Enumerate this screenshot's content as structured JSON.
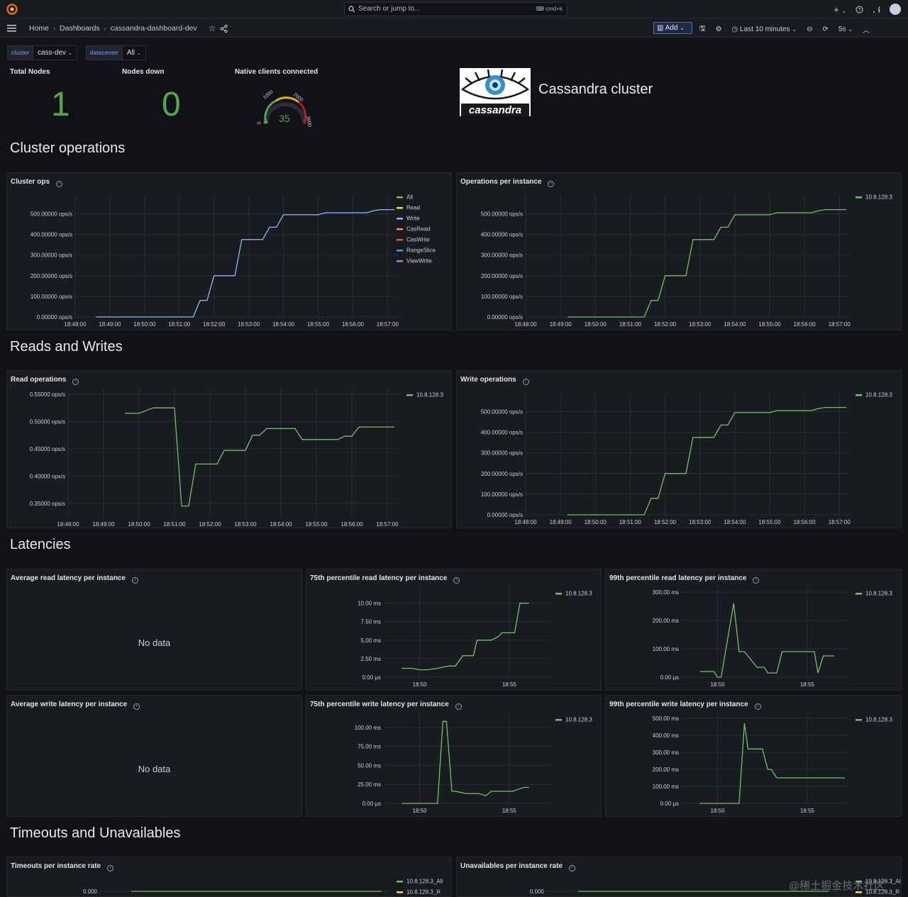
{
  "topbar": {
    "search_placeholder": "Search or jump to...",
    "search_shortcut": "cmd+k",
    "plus_label": "+"
  },
  "breadcrumb": {
    "home": "Home",
    "dashboards": "Dashboards",
    "current": "cassandra-dashboard-dev"
  },
  "toolbar": {
    "add_label": "Add",
    "time_range": "Last 10 minutes",
    "refresh": "5s"
  },
  "variables": [
    {
      "label": "cluster",
      "value": "cass-dev"
    },
    {
      "label": "datacenter",
      "value": "All"
    }
  ],
  "stats": {
    "total_nodes": {
      "title": "Total Nodes",
      "value": "1"
    },
    "nodes_down": {
      "title": "Nodes down",
      "value": "0"
    },
    "native_clients": {
      "title": "Native clients connected",
      "value": "35",
      "ticks": [
        "0",
        "1000",
        "2000",
        "3000"
      ],
      "min": 0,
      "max": 3000
    }
  },
  "banner": {
    "logo_text": "cassandra",
    "title": "Cassandra cluster"
  },
  "rows": {
    "cluster_ops": "Cluster operations",
    "reads_writes": "Reads and Writes",
    "latencies": "Latencies",
    "timeouts": "Timeouts and Unavailables"
  },
  "colors": {
    "green": "#73bf69",
    "blue": "#8ab8ff",
    "yellow": "#fade2a",
    "orange": "#ff9830",
    "red": "#f2495c",
    "lblue": "#5794f2",
    "purple": "#b877d9",
    "stat_green": "#56a64b"
  },
  "no_data": "No data",
  "chart_data": [
    {
      "id": "cluster_ops",
      "type": "line",
      "title": "Cluster ops",
      "yticks": [
        "0.00000 ops/s",
        "100.00000 ops/s",
        "200.00000 ops/s",
        "300.00000 ops/s",
        "400.00000 ops/s",
        "500.00000 ops/s"
      ],
      "ylim": [
        0,
        560
      ],
      "xticks": [
        "18:48:00",
        "18:49:00",
        "18:50:00",
        "18:51:00",
        "18:52:00",
        "18:53:00",
        "18:54:00",
        "18:55:00",
        "18:56:00",
        "18:57:00"
      ],
      "legend": [
        "All",
        "Read",
        "Write",
        "CasRead",
        "CasWrite",
        "RangeSlice",
        "ViewWrite"
      ],
      "legend_colors": [
        "#73bf69",
        "#fade2a",
        "#8ab8ff",
        "#ff9830",
        "#f2495c",
        "#5794f2",
        "#b877d9"
      ],
      "series_color": "#8ab8ff",
      "x": [
        0.6,
        0.8,
        1.0,
        1.2,
        1.4,
        1.6,
        1.8,
        2.0,
        2.2,
        2.4,
        2.6,
        2.8,
        3.0,
        3.2,
        3.4,
        3.6,
        3.8,
        4.0,
        4.2,
        4.4,
        4.6,
        4.8,
        5.0,
        5.2,
        5.4,
        5.6,
        5.8,
        6.0,
        6.2,
        6.4,
        6.6,
        6.8,
        7.0,
        7.2,
        7.4,
        7.6,
        7.8,
        8.0,
        8.2,
        8.4,
        8.6,
        8.8,
        9.0,
        9.2
      ],
      "values": [
        0,
        0,
        0,
        0,
        0,
        0,
        0,
        0,
        0,
        0,
        0,
        0,
        0,
        0,
        0,
        80,
        80,
        200,
        200,
        200,
        200,
        375,
        375,
        375,
        375,
        435,
        435,
        495,
        495,
        495,
        495,
        495,
        495,
        505,
        505,
        505,
        505,
        505,
        505,
        505,
        515,
        520,
        520,
        520
      ]
    },
    {
      "id": "ops_per_instance",
      "type": "line",
      "title": "Operations per instance",
      "yticks": [
        "0.00000 ops/s",
        "100.00000 ops/s",
        "200.00000 ops/s",
        "300.00000 ops/s",
        "400.00000 ops/s",
        "500.00000 ops/s"
      ],
      "ylim": [
        0,
        560
      ],
      "xticks": [
        "18:48:00",
        "18:49:00",
        "18:50:00",
        "18:51:00",
        "18:52:00",
        "18:53:00",
        "18:54:00",
        "18:55:00",
        "18:56:00",
        "18:57:00"
      ],
      "legend": [
        "10.8.128.3"
      ],
      "legend_colors": [
        "#73bf69"
      ],
      "series_color": "#73bf69",
      "x": [
        1.2,
        1.4,
        1.6,
        1.8,
        2.0,
        2.2,
        2.4,
        2.6,
        2.8,
        3.0,
        3.2,
        3.4,
        3.6,
        3.8,
        4.0,
        4.2,
        4.4,
        4.6,
        4.8,
        5.0,
        5.2,
        5.4,
        5.6,
        5.8,
        6.0,
        6.2,
        6.4,
        6.6,
        6.8,
        7.0,
        7.2,
        7.4,
        7.6,
        7.8,
        8.0,
        8.2,
        8.4,
        8.6,
        8.8,
        9.0,
        9.2
      ],
      "values": [
        0,
        0,
        0,
        0,
        0,
        0,
        0,
        0,
        0,
        0,
        0,
        0,
        80,
        80,
        200,
        200,
        200,
        200,
        375,
        375,
        375,
        375,
        435,
        435,
        495,
        495,
        495,
        495,
        495,
        495,
        505,
        505,
        505,
        505,
        505,
        505,
        515,
        520,
        520,
        520,
        520
      ]
    },
    {
      "id": "read_ops",
      "type": "line",
      "title": "Read operations",
      "yticks": [
        "0.35000 ops/s",
        "0.40000 ops/s",
        "0.45000 ops/s",
        "0.50000 ops/s",
        "0.55000 ops/s"
      ],
      "ytick_values": [
        0.35,
        0.4,
        0.45,
        0.5,
        0.55
      ],
      "ylim": [
        0.325,
        0.55
      ],
      "xticks": [
        "18:48:00",
        "18:49:00",
        "18:50:00",
        "18:51:00",
        "18:52:00",
        "18:53:00",
        "18:54:00",
        "18:55:00",
        "18:56:00",
        "18:57:00"
      ],
      "legend": [
        "10.8.128.3"
      ],
      "legend_colors": [
        "#73bf69"
      ],
      "series_color": "#73bf69",
      "x": [
        1.6,
        2.0,
        2.4,
        2.8,
        3.0,
        3.2,
        3.4,
        3.6,
        3.8,
        4.0,
        4.2,
        4.4,
        4.6,
        4.8,
        5.0,
        5.2,
        5.4,
        5.6,
        5.8,
        6.0,
        6.2,
        6.4,
        6.6,
        6.8,
        7.0,
        7.2,
        7.4,
        7.6,
        7.8,
        8.0,
        8.2,
        8.4,
        8.6,
        8.8,
        9.0,
        9.2
      ],
      "values": [
        0.515,
        0.515,
        0.525,
        0.525,
        0.525,
        0.345,
        0.345,
        0.422,
        0.422,
        0.422,
        0.422,
        0.447,
        0.447,
        0.447,
        0.447,
        0.475,
        0.475,
        0.487,
        0.487,
        0.487,
        0.487,
        0.487,
        0.467,
        0.467,
        0.467,
        0.467,
        0.467,
        0.467,
        0.473,
        0.473,
        0.49,
        0.49,
        0.49,
        0.49,
        0.49,
        0.49
      ]
    },
    {
      "id": "write_ops",
      "type": "line",
      "title": "Write operations",
      "yticks": [
        "0.00000 ops/s",
        "100.00000 ops/s",
        "200.00000 ops/s",
        "300.00000 ops/s",
        "400.00000 ops/s",
        "500.00000 ops/s"
      ],
      "ylim": [
        0,
        560
      ],
      "xticks": [
        "18:48:00",
        "18:49:00",
        "18:50:00",
        "18:51:00",
        "18:52:00",
        "18:53:00",
        "18:54:00",
        "18:55:00",
        "18:56:00",
        "18:57:00"
      ],
      "legend": [
        "10.8.128.3"
      ],
      "legend_colors": [
        "#73bf69"
      ],
      "series_color": "#73bf69",
      "x": [
        1.2,
        1.4,
        1.6,
        1.8,
        2.0,
        2.2,
        2.4,
        2.6,
        2.8,
        3.0,
        3.2,
        3.4,
        3.6,
        3.8,
        4.0,
        4.2,
        4.4,
        4.6,
        4.8,
        5.0,
        5.2,
        5.4,
        5.6,
        5.8,
        6.0,
        6.2,
        6.4,
        6.6,
        6.8,
        7.0,
        7.2,
        7.4,
        7.6,
        7.8,
        8.0,
        8.2,
        8.4,
        8.6,
        8.8,
        9.0,
        9.2
      ],
      "values": [
        0,
        0,
        0,
        0,
        0,
        0,
        0,
        0,
        0,
        0,
        0,
        0,
        80,
        80,
        200,
        200,
        200,
        200,
        375,
        375,
        375,
        375,
        435,
        435,
        495,
        495,
        495,
        495,
        495,
        495,
        505,
        505,
        505,
        505,
        505,
        505,
        515,
        520,
        520,
        520,
        520
      ]
    },
    {
      "id": "avg_read_latency",
      "type": "line",
      "title": "Average read latency per instance",
      "no_data": true
    },
    {
      "id": "p75_read_latency",
      "type": "line",
      "title": "75th percentile read latency per instance",
      "yticks": [
        "0.00 µs",
        "2.50 ms",
        "5.00 ms",
        "7.50 ms",
        "10.00 ms"
      ],
      "ytick_values": [
        0,
        2.5,
        5,
        7.5,
        10
      ],
      "ylim": [
        0,
        11.5
      ],
      "xticks": [
        "18:50",
        "18:55"
      ],
      "xtick_values": [
        2,
        7
      ],
      "legend": [
        "10.8.128.3"
      ],
      "legend_colors": [
        "#73bf69"
      ],
      "series_color": "#73bf69",
      "x": [
        1.0,
        1.6,
        2.0,
        2.4,
        3.0,
        3.6,
        4.0,
        4.4,
        4.6,
        5.0,
        5.2,
        5.8,
        6.0,
        6.4,
        6.6,
        7.0,
        7.3,
        7.6,
        7.8,
        8.1
      ],
      "values": [
        1.2,
        1.2,
        1.0,
        1.0,
        1.2,
        1.5,
        1.5,
        2.9,
        2.9,
        2.9,
        5.0,
        5.0,
        5.0,
        5.5,
        6.0,
        6.0,
        6.0,
        10.0,
        10.0,
        10.0
      ]
    },
    {
      "id": "p99_read_latency",
      "type": "line",
      "title": "99th percentile read latency per instance",
      "yticks": [
        "0.00 µs",
        "100.00 ms",
        "200.00 ms",
        "300.00 ms"
      ],
      "ytick_values": [
        0,
        100,
        200,
        300
      ],
      "ylim": [
        0,
        300
      ],
      "xticks": [
        "18:50",
        "18:55"
      ],
      "xtick_values": [
        2,
        7
      ],
      "legend": [
        "10.8.128.3"
      ],
      "legend_colors": [
        "#73bf69"
      ],
      "series_color": "#73bf69",
      "x": [
        1.0,
        1.8,
        2.0,
        2.2,
        2.9,
        3.2,
        3.5,
        4.2,
        4.6,
        4.8,
        5.3,
        5.6,
        6.0,
        6.5,
        6.8,
        7.0,
        7.4,
        7.6,
        7.9,
        8.2,
        8.5
      ],
      "values": [
        20,
        20,
        0,
        0,
        260,
        90,
        90,
        35,
        35,
        15,
        15,
        90,
        90,
        90,
        90,
        90,
        90,
        15,
        75,
        75,
        75
      ]
    },
    {
      "id": "avg_write_latency",
      "type": "line",
      "title": "Average write latency per instance",
      "no_data": true
    },
    {
      "id": "p75_write_latency",
      "type": "line",
      "title": "75th percentile write latency per instance",
      "yticks": [
        "0.00 µs",
        "25.00 ms",
        "50.00 ms",
        "75.00 ms",
        "100.00 ms"
      ],
      "ytick_values": [
        0,
        25,
        50,
        75,
        100
      ],
      "ylim": [
        0,
        112
      ],
      "xticks": [
        "18:50",
        "18:55"
      ],
      "xtick_values": [
        2,
        7
      ],
      "legend": [
        "10.8.128.3"
      ],
      "legend_colors": [
        "#73bf69"
      ],
      "series_color": "#73bf69",
      "x": [
        1.0,
        1.8,
        2.2,
        3.0,
        3.3,
        3.5,
        3.8,
        4.0,
        4.6,
        5.3,
        5.7,
        6.0,
        6.6,
        7.2,
        7.8,
        8.1
      ],
      "values": [
        0,
        0,
        0,
        0,
        108,
        108,
        16,
        16,
        13,
        13,
        10,
        16,
        16,
        16,
        21,
        21
      ]
    },
    {
      "id": "p99_write_latency",
      "type": "line",
      "title": "99th percentile write latency per instance",
      "yticks": [
        "0.00 µs",
        "100.00 ms",
        "200.00 ms",
        "300.00 ms",
        "400.00 ms",
        "500.00 ms"
      ],
      "ytick_values": [
        0,
        100,
        200,
        300,
        400,
        500
      ],
      "ylim": [
        0,
        500
      ],
      "xticks": [
        "18:50",
        "18:55"
      ],
      "xtick_values": [
        2,
        7
      ],
      "legend": [
        "10.8.128.3"
      ],
      "legend_colors": [
        "#73bf69"
      ],
      "series_color": "#73bf69",
      "x": [
        1.0,
        2.0,
        2.7,
        3.2,
        3.5,
        3.7,
        4.2,
        4.5,
        4.8,
        5.0,
        5.3,
        5.6,
        6.0,
        6.5,
        7.0,
        7.6,
        8.2,
        8.8,
        9.1
      ],
      "values": [
        0,
        0,
        0,
        0,
        470,
        320,
        320,
        320,
        200,
        200,
        150,
        150,
        150,
        150,
        150,
        150,
        150,
        150,
        150
      ]
    },
    {
      "id": "timeouts",
      "type": "line",
      "title": "Timeouts per instance rate",
      "yticks": [
        "0.000"
      ],
      "ytick_values": [
        0
      ],
      "ylim": [
        0,
        1
      ],
      "legend": [
        "10.8.128.3_All",
        "10.8.128.3_R"
      ],
      "legend_colors": [
        "#73bf69",
        "#fade2a"
      ],
      "series_color": "#73bf69",
      "x": [
        1.0,
        9.0
      ],
      "values": [
        0,
        0
      ]
    },
    {
      "id": "unavailables",
      "type": "line",
      "title": "Unavailables per instance rate",
      "yticks": [
        "0.000"
      ],
      "ytick_values": [
        0
      ],
      "ylim": [
        0,
        1
      ],
      "legend": [
        "10.8.128.3_All",
        "10.8.128.3_R"
      ],
      "legend_colors": [
        "#73bf69",
        "#fade2a"
      ],
      "series_color": "#73bf69",
      "x": [
        1.0,
        9.0
      ],
      "values": [
        0,
        0
      ]
    }
  ],
  "watermark": "@稀土掘金技术社区"
}
